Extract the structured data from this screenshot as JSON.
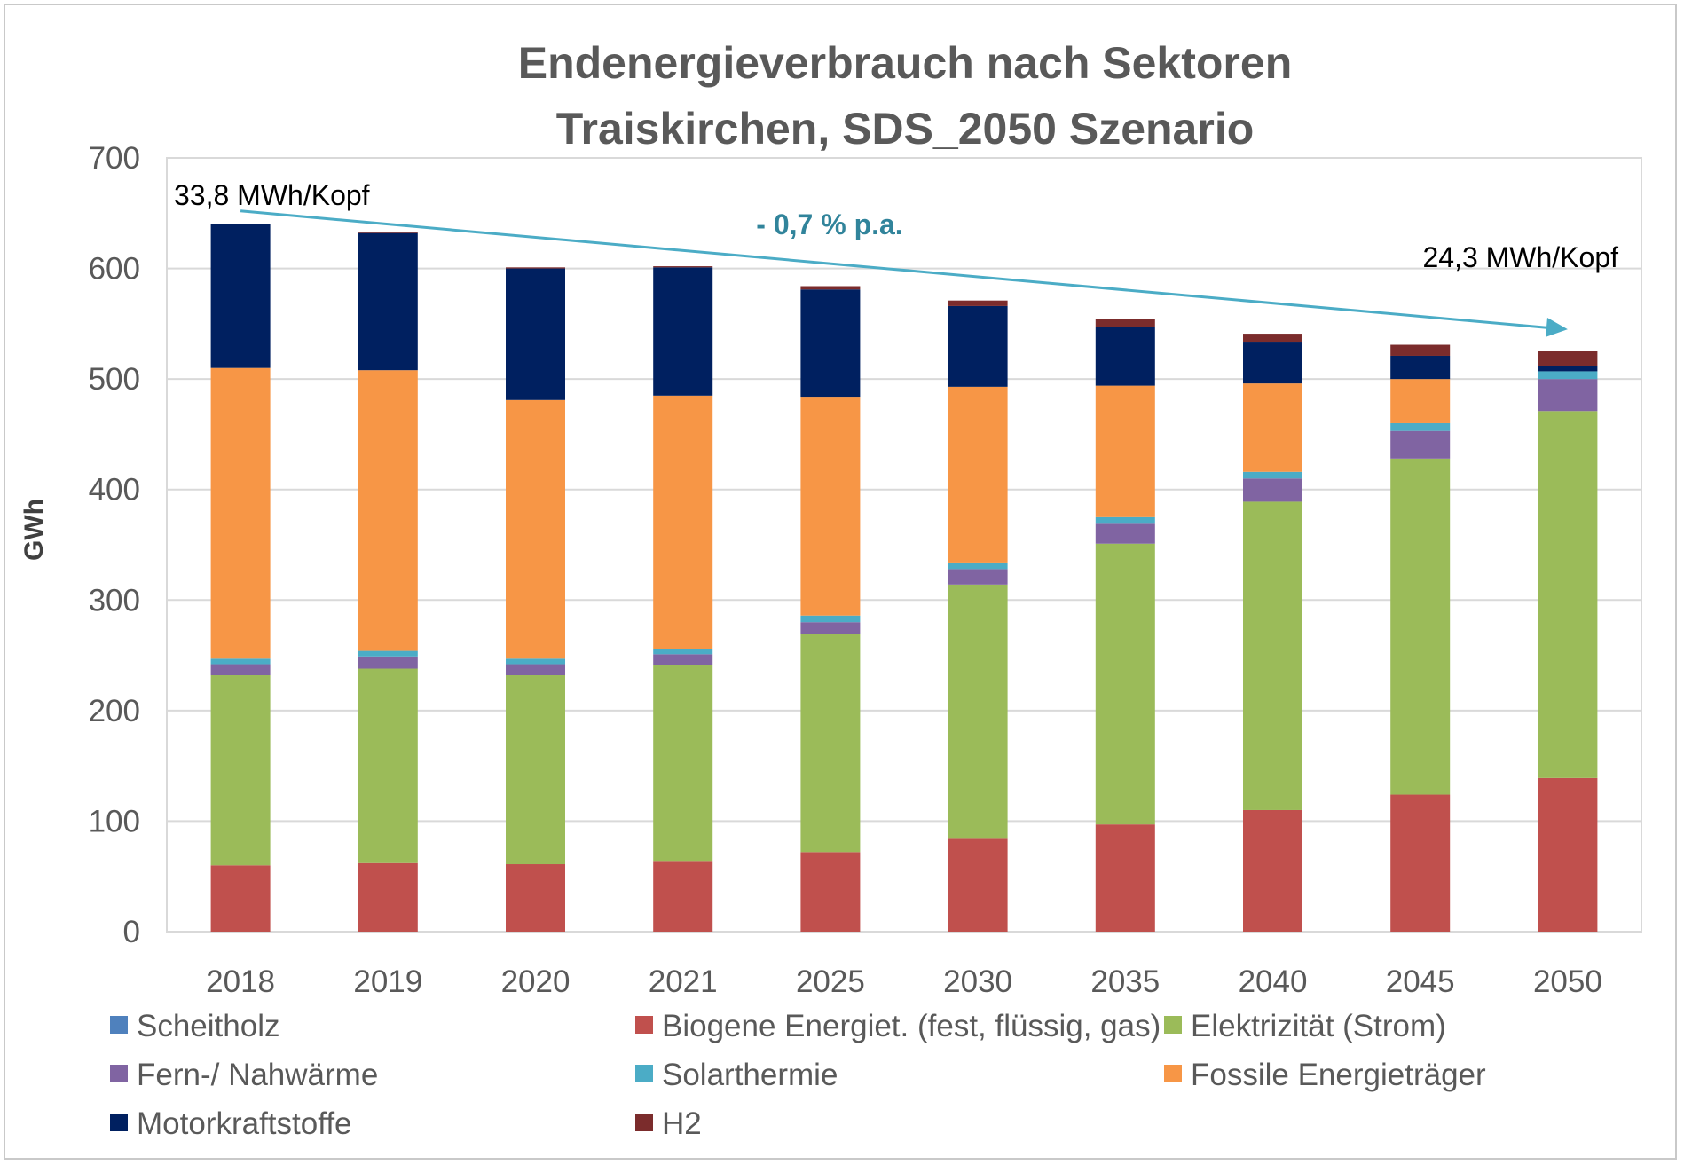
{
  "chart_data": {
    "type": "bar",
    "stacked": true,
    "title": [
      "Endenergieverbrauch nach Sektoren",
      "Traiskirchen, SDS_2050 Szenario"
    ],
    "ylabel": "GWh",
    "xlabel": "",
    "ylim": [
      0,
      700
    ],
    "yticks": [
      "0",
      "100",
      "200",
      "300",
      "400",
      "500",
      "600",
      "700"
    ],
    "grid": true,
    "legend_position": "bottom",
    "categories": [
      "2018",
      "2019",
      "2020",
      "2021",
      "2025",
      "2030",
      "2035",
      "2040",
      "2045",
      "2050"
    ],
    "series": [
      {
        "name": "Scheitholz",
        "color": "#4F81BD",
        "values": [
          0,
          0,
          0,
          0,
          0,
          0,
          0,
          0,
          0,
          0
        ]
      },
      {
        "name": "Biogene Energiet. (fest, flüssig, gas)",
        "color": "#C0504D",
        "values": [
          60,
          62,
          61,
          64,
          72,
          84,
          97,
          110,
          124,
          139
        ]
      },
      {
        "name": "Elektrizität (Strom)",
        "color": "#9BBB59",
        "values": [
          172,
          176,
          171,
          177,
          197,
          230,
          254,
          279,
          304,
          332
        ]
      },
      {
        "name": "Fern-/ Nahwärme",
        "color": "#8064A2",
        "values": [
          10,
          11,
          10,
          10,
          11,
          14,
          18,
          21,
          25,
          29
        ]
      },
      {
        "name": "Solarthermie",
        "color": "#4BACC6",
        "values": [
          5,
          5,
          5,
          5,
          6,
          6,
          6,
          6,
          7,
          7
        ]
      },
      {
        "name": "Fossile Energieträger",
        "color": "#F79646",
        "values": [
          263,
          254,
          234,
          229,
          198,
          159,
          119,
          80,
          40,
          0
        ]
      },
      {
        "name": "Motorkraftstoffe",
        "color": "#002060",
        "values": [
          130,
          124,
          119,
          116,
          97,
          73,
          53,
          37,
          21,
          5
        ]
      },
      {
        "name": "H2",
        "color": "#7B2C2C",
        "values": [
          0,
          1,
          1,
          1,
          3,
          5,
          7,
          8,
          10,
          13
        ]
      }
    ],
    "annotations": {
      "start_label": "33,8 MWh/Kopf",
      "end_label": "24,3 MWh/Kopf",
      "trend_label": "- 0,7  % p.a.",
      "trend_color": "#4BACC6",
      "trend_text_color": "#31849B",
      "trend_start": {
        "x": "2018",
        "y": 652
      },
      "trend_end": {
        "x": "2050",
        "y": 545
      }
    }
  }
}
